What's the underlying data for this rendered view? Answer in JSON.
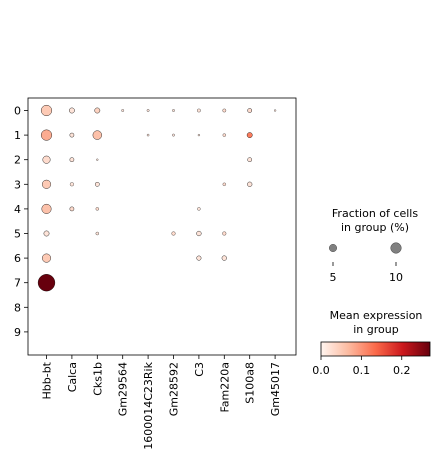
{
  "chart_data": {
    "type": "dotplot",
    "genes": [
      "Hbb-bt",
      "Calca",
      "Cks1b",
      "Gm29564",
      "1600014C23Rik",
      "Gm28592",
      "C3",
      "Fam220a",
      "S100a8",
      "Gm45017"
    ],
    "groups": [
      "0",
      "1",
      "2",
      "3",
      "4",
      "5",
      "6",
      "7",
      "8",
      "9"
    ],
    "fraction_pct": [
      [
        10,
        2.5,
        2.5,
        0.5,
        0.5,
        0.5,
        1.0,
        1.0,
        1.5,
        0.3
      ],
      [
        10,
        1.5,
        7,
        0,
        0.4,
        0.5,
        0.3,
        0.8,
        2.5,
        0
      ],
      [
        5,
        1.5,
        0.3,
        0,
        0,
        0,
        0,
        0,
        1.5,
        0
      ],
      [
        6.5,
        1.2,
        1.5,
        0,
        0,
        0,
        0,
        0.8,
        2.0,
        0
      ],
      [
        8,
        1.5,
        0.8,
        0,
        0,
        0,
        0.8,
        0,
        0,
        0
      ],
      [
        2.5,
        0,
        0.8,
        0,
        0,
        1.2,
        2.0,
        1.2,
        0,
        0
      ],
      [
        6.5,
        0,
        0,
        0,
        0,
        0,
        1.8,
        2.0,
        0,
        0
      ],
      [
        25,
        0,
        0,
        0,
        0,
        0,
        0,
        0,
        0,
        0
      ],
      [
        0,
        0,
        0,
        0,
        0,
        0,
        0,
        0,
        0,
        0
      ],
      [
        0,
        0,
        0,
        0,
        0,
        0,
        0,
        0,
        0,
        0
      ]
    ],
    "mean_expression": [
      [
        0.05,
        0.02,
        0.04,
        0.02,
        0.02,
        0.02,
        0.02,
        0.03,
        0.03,
        0.02
      ],
      [
        0.08,
        0.02,
        0.06,
        0,
        0.02,
        0.02,
        0.02,
        0.03,
        0.12,
        0
      ],
      [
        0.03,
        0.02,
        0.02,
        0,
        0,
        0,
        0,
        0,
        0.02,
        0
      ],
      [
        0.05,
        0.02,
        0.02,
        0,
        0,
        0,
        0,
        0.03,
        0.02,
        0
      ],
      [
        0.06,
        0.03,
        0.03,
        0,
        0,
        0,
        0.02,
        0,
        0,
        0
      ],
      [
        0.02,
        0,
        0.02,
        0,
        0,
        0.03,
        0.02,
        0.03,
        0,
        0
      ],
      [
        0.05,
        0,
        0,
        0,
        0,
        0,
        0.02,
        0.02,
        0,
        0
      ],
      [
        0.27,
        0,
        0,
        0,
        0,
        0,
        0,
        0,
        0,
        0
      ],
      [
        0,
        0,
        0,
        0,
        0,
        0,
        0,
        0,
        0,
        0
      ],
      [
        0,
        0,
        0,
        0,
        0,
        0,
        0,
        0,
        0,
        0
      ]
    ],
    "size_legend": {
      "title_line1": "Fraction of cells",
      "title_line2": "in group (%)",
      "values": [
        5,
        10
      ],
      "labels": [
        "5",
        "10"
      ]
    },
    "color_legend": {
      "title_line1": "Mean expression",
      "title_line2": "in group",
      "range": [
        0,
        0.27
      ],
      "ticks": [
        0.0,
        0.1,
        0.2
      ],
      "tick_labels": [
        "0.0",
        "0.1",
        "0.2"
      ],
      "colormap": "Reds"
    },
    "grid": false
  }
}
